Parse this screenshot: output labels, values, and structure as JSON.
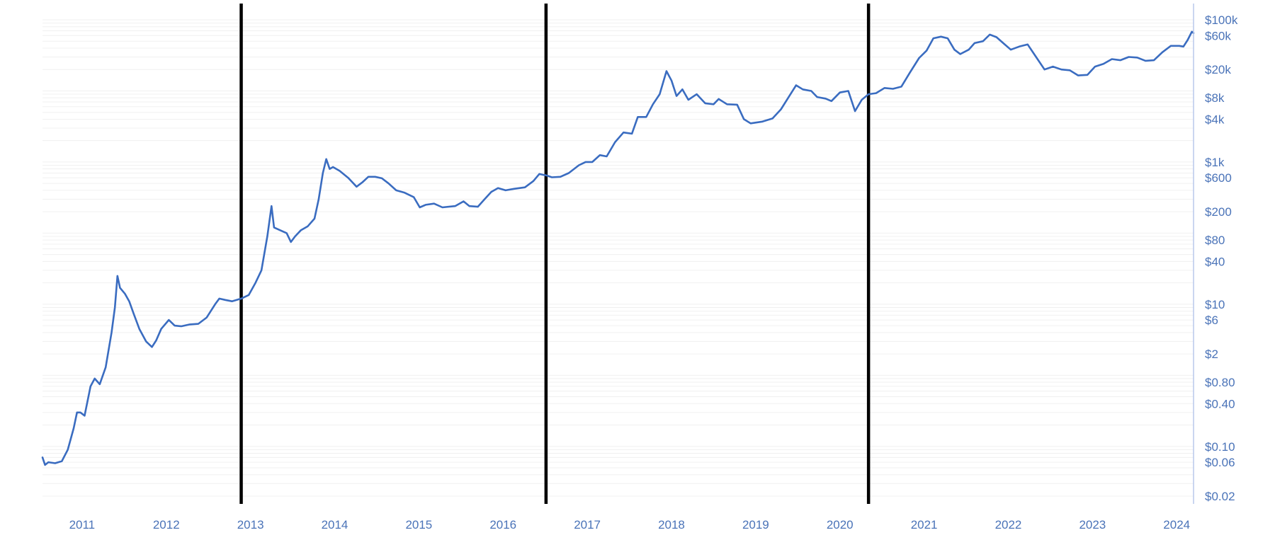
{
  "colors": {
    "line": "#3a6cc0",
    "tick_text": "#4a73b8",
    "halving": "#000000",
    "axis": "#b8c8ec",
    "grid": "#f0f0f0"
  },
  "chart_data": {
    "type": "line",
    "title": "",
    "xlabel": "",
    "ylabel": "",
    "y_scale": "log",
    "x_ticks": [
      "2011",
      "2012",
      "2013",
      "2014",
      "2015",
      "2016",
      "2017",
      "2018",
      "2019",
      "2020",
      "2021",
      "2022",
      "2023",
      "2024"
    ],
    "y_ticks": [
      {
        "value": 0.02,
        "label": "$0.02"
      },
      {
        "value": 0.06,
        "label": "$0.06"
      },
      {
        "value": 0.1,
        "label": "$0.10"
      },
      {
        "value": 0.4,
        "label": "$0.40"
      },
      {
        "value": 0.8,
        "label": "$0.80"
      },
      {
        "value": 2,
        "label": "$2"
      },
      {
        "value": 6,
        "label": "$6"
      },
      {
        "value": 10,
        "label": "$10"
      },
      {
        "value": 40,
        "label": "$40"
      },
      {
        "value": 80,
        "label": "$80"
      },
      {
        "value": 200,
        "label": "$200"
      },
      {
        "value": 600,
        "label": "$600"
      },
      {
        "value": 1000,
        "label": "$1k"
      },
      {
        "value": 4000,
        "label": "$4k"
      },
      {
        "value": 8000,
        "label": "$8k"
      },
      {
        "value": 20000,
        "label": "$20k"
      },
      {
        "value": 60000,
        "label": "$60k"
      },
      {
        "value": 100000,
        "label": "$100k"
      }
    ],
    "halvings": [
      2012.91,
      2016.53,
      2020.36
    ],
    "series": [
      {
        "points": [
          [
            2010.55,
            0.07
          ],
          [
            2010.58,
            0.055
          ],
          [
            2010.62,
            0.06
          ],
          [
            2010.7,
            0.058
          ],
          [
            2010.78,
            0.062
          ],
          [
            2010.85,
            0.09
          ],
          [
            2010.92,
            0.18
          ],
          [
            2010.96,
            0.3
          ],
          [
            2011.0,
            0.3
          ],
          [
            2011.05,
            0.27
          ],
          [
            2011.12,
            0.7
          ],
          [
            2011.17,
            0.9
          ],
          [
            2011.23,
            0.75
          ],
          [
            2011.3,
            1.3
          ],
          [
            2011.37,
            4.0
          ],
          [
            2011.41,
            9.0
          ],
          [
            2011.44,
            25.0
          ],
          [
            2011.47,
            17.0
          ],
          [
            2011.53,
            14.0
          ],
          [
            2011.58,
            11.0
          ],
          [
            2011.63,
            7.5
          ],
          [
            2011.7,
            4.5
          ],
          [
            2011.78,
            3.0
          ],
          [
            2011.85,
            2.5
          ],
          [
            2011.9,
            3.1
          ],
          [
            2011.96,
            4.5
          ],
          [
            2012.05,
            6.0
          ],
          [
            2012.12,
            5.0
          ],
          [
            2012.2,
            4.9
          ],
          [
            2012.3,
            5.2
          ],
          [
            2012.4,
            5.3
          ],
          [
            2012.5,
            6.5
          ],
          [
            2012.6,
            10.0
          ],
          [
            2012.65,
            12.0
          ],
          [
            2012.72,
            11.5
          ],
          [
            2012.8,
            11.0
          ],
          [
            2012.91,
            12.0
          ],
          [
            2013.0,
            13.5
          ],
          [
            2013.08,
            20.0
          ],
          [
            2013.15,
            30.0
          ],
          [
            2013.22,
            90.0
          ],
          [
            2013.27,
            240.0
          ],
          [
            2013.3,
            120.0
          ],
          [
            2013.37,
            110.0
          ],
          [
            2013.45,
            100.0
          ],
          [
            2013.5,
            75.0
          ],
          [
            2013.55,
            90.0
          ],
          [
            2013.62,
            110.0
          ],
          [
            2013.7,
            125.0
          ],
          [
            2013.78,
            160.0
          ],
          [
            2013.83,
            300.0
          ],
          [
            2013.88,
            700.0
          ],
          [
            2013.92,
            1100.0
          ],
          [
            2013.96,
            800.0
          ],
          [
            2014.0,
            850.0
          ],
          [
            2014.08,
            750.0
          ],
          [
            2014.18,
            600.0
          ],
          [
            2014.28,
            450.0
          ],
          [
            2014.35,
            520.0
          ],
          [
            2014.42,
            620.0
          ],
          [
            2014.5,
            620.0
          ],
          [
            2014.58,
            590.0
          ],
          [
            2014.66,
            500.0
          ],
          [
            2014.75,
            400.0
          ],
          [
            2014.85,
            370.0
          ],
          [
            2014.96,
            320.0
          ],
          [
            2015.03,
            230.0
          ],
          [
            2015.1,
            250.0
          ],
          [
            2015.2,
            260.0
          ],
          [
            2015.3,
            230.0
          ],
          [
            2015.45,
            240.0
          ],
          [
            2015.55,
            280.0
          ],
          [
            2015.62,
            240.0
          ],
          [
            2015.72,
            235.0
          ],
          [
            2015.8,
            300.0
          ],
          [
            2015.88,
            380.0
          ],
          [
            2015.96,
            430.0
          ],
          [
            2016.05,
            400.0
          ],
          [
            2016.15,
            420.0
          ],
          [
            2016.28,
            440.0
          ],
          [
            2016.38,
            540.0
          ],
          [
            2016.45,
            680.0
          ],
          [
            2016.5,
            660.0
          ],
          [
            2016.53,
            650.0
          ],
          [
            2016.6,
            610.0
          ],
          [
            2016.7,
            620.0
          ],
          [
            2016.8,
            700.0
          ],
          [
            2016.92,
            900.0
          ],
          [
            2017.0,
            1000.0
          ],
          [
            2017.08,
            1000.0
          ],
          [
            2017.17,
            1250.0
          ],
          [
            2017.25,
            1200.0
          ],
          [
            2017.35,
            1900.0
          ],
          [
            2017.45,
            2600.0
          ],
          [
            2017.55,
            2500.0
          ],
          [
            2017.62,
            4300.0
          ],
          [
            2017.72,
            4300.0
          ],
          [
            2017.8,
            6500.0
          ],
          [
            2017.88,
            9000.0
          ],
          [
            2017.96,
            19000.0
          ],
          [
            2018.02,
            14000.0
          ],
          [
            2018.08,
            8500.0
          ],
          [
            2018.15,
            10500.0
          ],
          [
            2018.22,
            7500.0
          ],
          [
            2018.32,
            9000.0
          ],
          [
            2018.42,
            6700.0
          ],
          [
            2018.52,
            6500.0
          ],
          [
            2018.58,
            7700.0
          ],
          [
            2018.68,
            6500.0
          ],
          [
            2018.8,
            6400.0
          ],
          [
            2018.88,
            4000.0
          ],
          [
            2018.96,
            3500.0
          ],
          [
            2019.1,
            3700.0
          ],
          [
            2019.22,
            4100.0
          ],
          [
            2019.32,
            5500.0
          ],
          [
            2019.42,
            8500.0
          ],
          [
            2019.5,
            12000.0
          ],
          [
            2019.58,
            10500.0
          ],
          [
            2019.68,
            10000.0
          ],
          [
            2019.75,
            8200.0
          ],
          [
            2019.85,
            7800.0
          ],
          [
            2019.92,
            7200.0
          ],
          [
            2020.02,
            9500.0
          ],
          [
            2020.12,
            10000.0
          ],
          [
            2020.2,
            5200.0
          ],
          [
            2020.28,
            7500.0
          ],
          [
            2020.36,
            9000.0
          ],
          [
            2020.45,
            9300.0
          ],
          [
            2020.55,
            11000.0
          ],
          [
            2020.65,
            10700.0
          ],
          [
            2020.75,
            11500.0
          ],
          [
            2020.85,
            18000.0
          ],
          [
            2020.96,
            29000.0
          ],
          [
            2021.05,
            37000.0
          ],
          [
            2021.13,
            55000.0
          ],
          [
            2021.22,
            58000.0
          ],
          [
            2021.3,
            55000.0
          ],
          [
            2021.38,
            38000.0
          ],
          [
            2021.45,
            33000.0
          ],
          [
            2021.55,
            38000.0
          ],
          [
            2021.62,
            47000.0
          ],
          [
            2021.72,
            50000.0
          ],
          [
            2021.8,
            62000.0
          ],
          [
            2021.88,
            57000.0
          ],
          [
            2021.96,
            47000.0
          ],
          [
            2022.05,
            38000.0
          ],
          [
            2022.15,
            42000.0
          ],
          [
            2022.25,
            45000.0
          ],
          [
            2022.35,
            30000.0
          ],
          [
            2022.45,
            20000.0
          ],
          [
            2022.55,
            22000.0
          ],
          [
            2022.65,
            20000.0
          ],
          [
            2022.75,
            19500.0
          ],
          [
            2022.85,
            16500.0
          ],
          [
            2022.96,
            16800.0
          ],
          [
            2023.05,
            22000.0
          ],
          [
            2023.15,
            24000.0
          ],
          [
            2023.25,
            28000.0
          ],
          [
            2023.35,
            27000.0
          ],
          [
            2023.45,
            30000.0
          ],
          [
            2023.55,
            29500.0
          ],
          [
            2023.65,
            26500.0
          ],
          [
            2023.75,
            27000.0
          ],
          [
            2023.85,
            35000.0
          ],
          [
            2023.95,
            43000.0
          ],
          [
            2024.05,
            43000.0
          ],
          [
            2024.1,
            42000.0
          ],
          [
            2024.15,
            52000.0
          ],
          [
            2024.2,
            68000.0
          ],
          [
            2024.22,
            65000.0
          ]
        ]
      }
    ]
  }
}
